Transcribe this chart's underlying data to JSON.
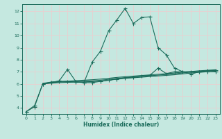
{
  "xlabel": "Humidex (Indice chaleur)",
  "bg_color": "#c5e8e0",
  "grid_color": "#dde8e5",
  "line_color": "#1a6b5a",
  "xlim": [
    -0.5,
    23.5
  ],
  "ylim": [
    3.5,
    12.6
  ],
  "xticks": [
    0,
    1,
    2,
    3,
    4,
    5,
    6,
    7,
    8,
    9,
    10,
    11,
    12,
    13,
    14,
    15,
    16,
    17,
    18,
    19,
    20,
    21,
    22,
    23
  ],
  "yticks": [
    4,
    5,
    6,
    7,
    8,
    9,
    10,
    11,
    12
  ],
  "line1_x": [
    0,
    1,
    2,
    3,
    4,
    5,
    6,
    7,
    8,
    9,
    10,
    11,
    12,
    13,
    14,
    15,
    16,
    17,
    18,
    19,
    20,
    21,
    22,
    23
  ],
  "line1_y": [
    3.7,
    4.1,
    6.0,
    6.1,
    6.25,
    7.2,
    6.2,
    6.1,
    7.8,
    8.7,
    10.4,
    11.3,
    12.25,
    11.0,
    11.5,
    11.55,
    9.0,
    8.4,
    7.3,
    7.0,
    6.8,
    7.0,
    7.0,
    7.0
  ],
  "line2_x": [
    0,
    1,
    2,
    3,
    4,
    5,
    6,
    7,
    8,
    9,
    10,
    11,
    12,
    13,
    14,
    15,
    16,
    17,
    18,
    19,
    20,
    21,
    22,
    23
  ],
  "line2_y": [
    3.7,
    4.2,
    6.0,
    6.15,
    6.2,
    6.2,
    6.15,
    6.1,
    6.1,
    6.2,
    6.3,
    6.4,
    6.5,
    6.55,
    6.65,
    6.7,
    7.3,
    6.85,
    7.0,
    7.0,
    7.0,
    7.0,
    7.1,
    7.1
  ],
  "line3_x": [
    2,
    3,
    4,
    5,
    6,
    7,
    8,
    9,
    10,
    11,
    12,
    13,
    14,
    15,
    16,
    17,
    18,
    19,
    20,
    21,
    22,
    23
  ],
  "line3_y": [
    6.0,
    6.05,
    6.1,
    6.12,
    6.14,
    6.16,
    6.18,
    6.22,
    6.3,
    6.38,
    6.45,
    6.5,
    6.55,
    6.6,
    6.65,
    6.7,
    6.75,
    6.82,
    6.9,
    6.95,
    7.0,
    7.05
  ],
  "line4_x": [
    2,
    3,
    4,
    5,
    6,
    7,
    8,
    9,
    10,
    11,
    12,
    13,
    14,
    15,
    16,
    17,
    18,
    19,
    20,
    21,
    22,
    23
  ],
  "line4_y": [
    6.0,
    6.08,
    6.15,
    6.18,
    6.2,
    6.22,
    6.25,
    6.3,
    6.37,
    6.45,
    6.52,
    6.57,
    6.62,
    6.67,
    6.72,
    6.77,
    6.83,
    6.9,
    6.96,
    7.02,
    7.07,
    7.12
  ],
  "line5_x": [
    2,
    3,
    4,
    5,
    6,
    7,
    8,
    9,
    10,
    11,
    12,
    13,
    14,
    15,
    16,
    17,
    18,
    19,
    20,
    21,
    22,
    23
  ],
  "line5_y": [
    6.05,
    6.12,
    6.18,
    6.22,
    6.26,
    6.3,
    6.34,
    6.39,
    6.46,
    6.53,
    6.59,
    6.64,
    6.69,
    6.74,
    6.79,
    6.84,
    6.9,
    6.96,
    7.02,
    7.08,
    7.12,
    7.17
  ]
}
